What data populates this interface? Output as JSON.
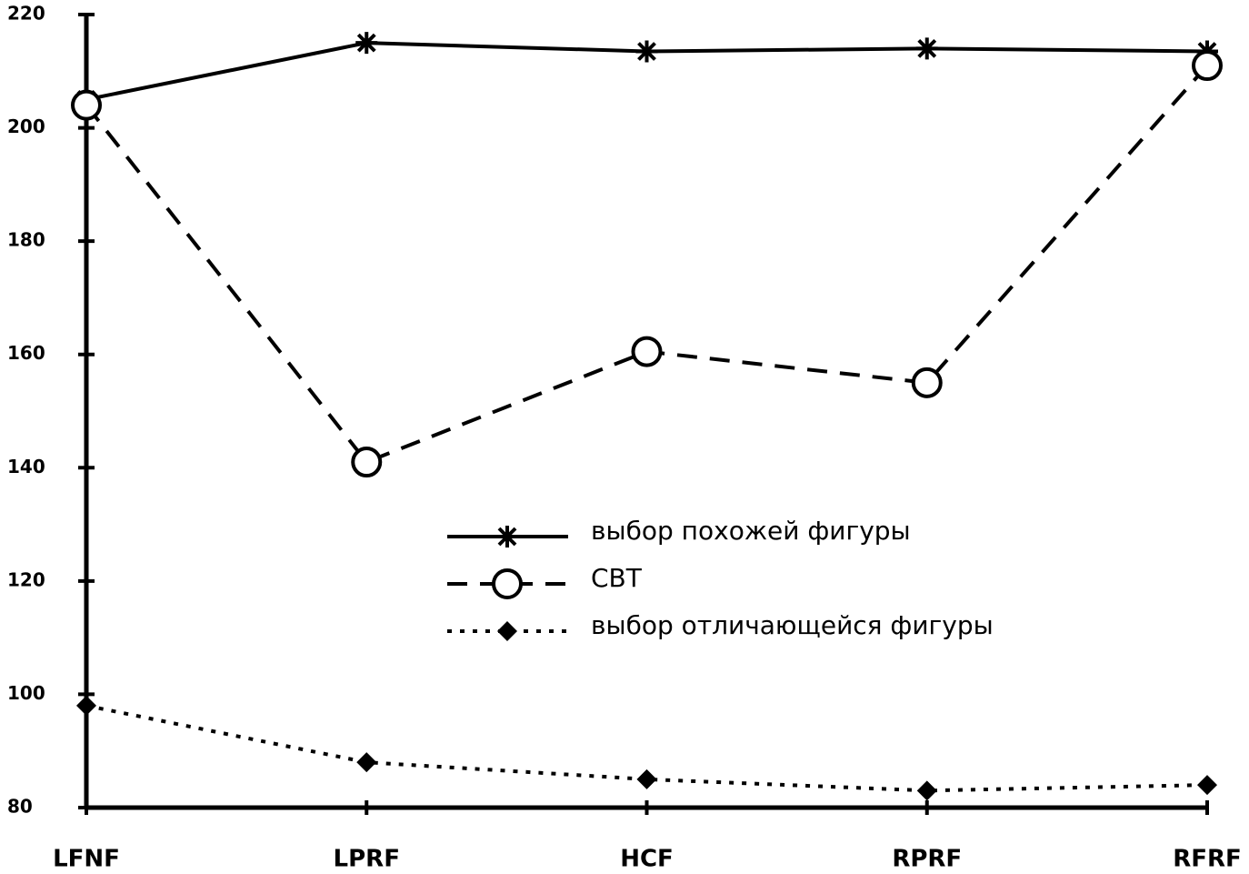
{
  "chart_data": {
    "type": "line",
    "categories": [
      "LFNF",
      "LPRF",
      "HCF",
      "RPRF",
      "RFRF"
    ],
    "series": [
      {
        "name": "выбор похожей фигуры",
        "color": "#000000",
        "line_style": "solid",
        "marker": "star",
        "values": [
          205,
          215,
          213.5,
          214,
          213.5
        ]
      },
      {
        "name": "СВТ",
        "color": "#000000",
        "line_style": "dashed",
        "marker": "circle",
        "values": [
          204,
          141,
          160.5,
          155,
          211
        ]
      },
      {
        "name": "выбор отличающейся фигуры",
        "color": "#000000",
        "line_style": "dotted",
        "marker": "diamond",
        "values": [
          98,
          88,
          85,
          83,
          84
        ]
      }
    ],
    "ylim": [
      80,
      220
    ],
    "yticks": [
      80,
      100,
      120,
      140,
      160,
      180,
      200,
      220
    ],
    "grid": false
  }
}
